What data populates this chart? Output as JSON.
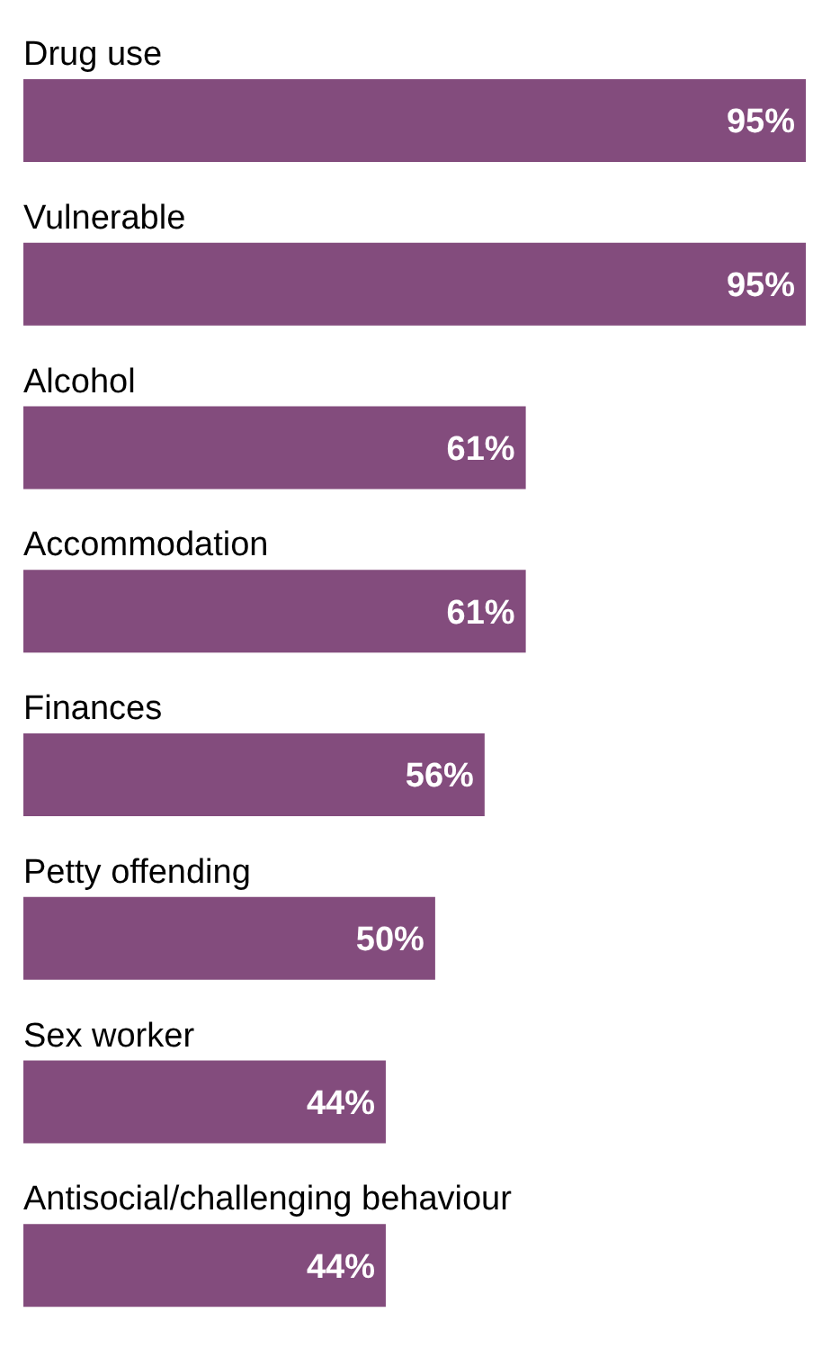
{
  "chart_data": {
    "type": "bar",
    "orientation": "horizontal",
    "categories": [
      "Drug use",
      "Vulnerable",
      "Alcohol",
      "Accommodation",
      "Finances",
      "Petty offending",
      "Sex worker",
      "Antisocial/challenging behaviour"
    ],
    "values": [
      95,
      95,
      61,
      61,
      56,
      50,
      44,
      44
    ],
    "value_labels": [
      "95%",
      "95%",
      "61%",
      "61%",
      "56%",
      "50%",
      "44%",
      "44%"
    ],
    "color": "#834c7d",
    "grid": false,
    "legend": false
  }
}
